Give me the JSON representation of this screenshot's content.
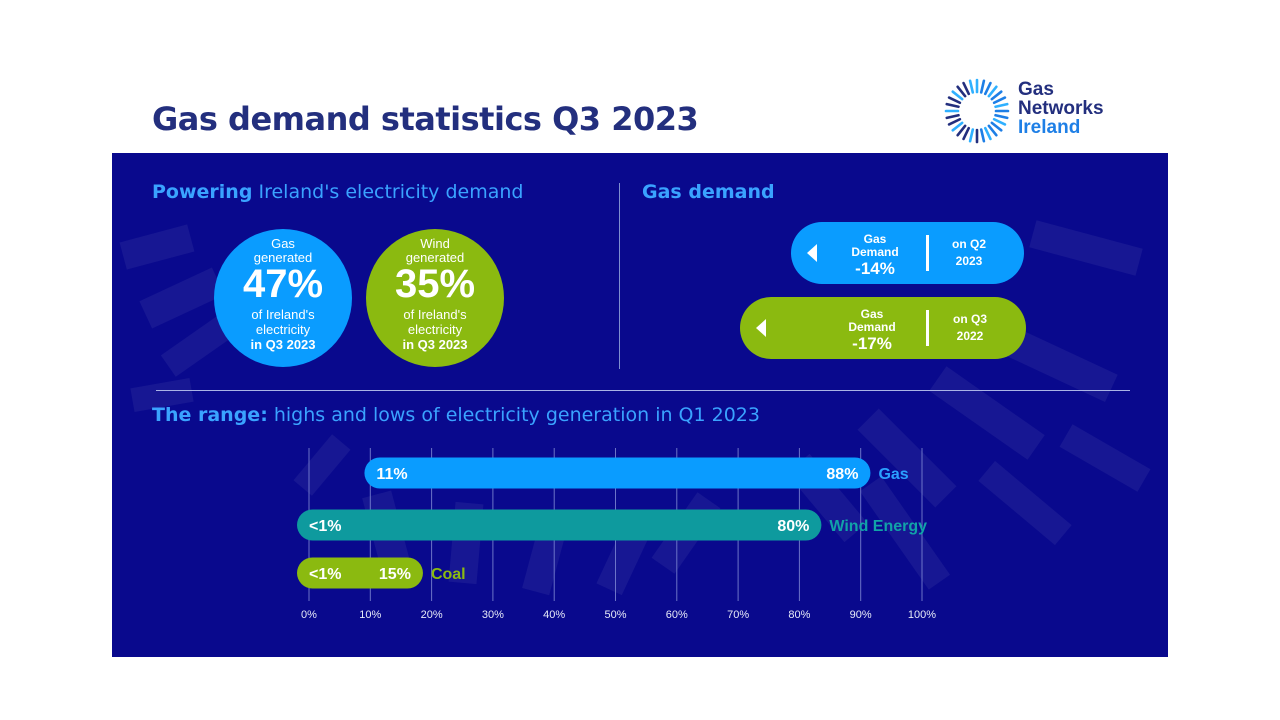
{
  "title": "Gas demand statistics Q3 2023",
  "logo": {
    "line1": "Gas",
    "line2": "Networks",
    "line3": "Ireland"
  },
  "colors": {
    "navy": "#232f7e",
    "panel": "#09098d",
    "gas_blue": "#0a9cff",
    "wind_green": "#8bba10",
    "teal": "#0e9a9e",
    "heading_blue": "#3aa3ff"
  },
  "powering": {
    "heading_bold": "Powering",
    "heading_rest": " Ireland's electricity demand",
    "gas": {
      "top1": "Gas",
      "top2": "generated",
      "value": "47%",
      "bot1": "of Ireland's",
      "bot2": "electricity",
      "bot3": "in Q3 2023"
    },
    "wind": {
      "top1": "Wind",
      "top2": "generated",
      "value": "35%",
      "bot1": "of Ireland's",
      "bot2": "electricity",
      "bot3": "in Q3 2023"
    }
  },
  "gas_demand": {
    "heading": "Gas demand",
    "items": [
      {
        "line1": "Gas",
        "line2": "Demand",
        "value": "-14%",
        "ref1": "on Q2",
        "ref2": "2023"
      },
      {
        "line1": "Gas",
        "line2": "Demand",
        "value": "-17%",
        "ref1": "on Q3",
        "ref2": "2022"
      }
    ]
  },
  "range": {
    "heading_bold": "The range:",
    "heading_rest": " highs and lows of electricity generation in Q1 2023"
  },
  "chart_data": {
    "type": "bar",
    "orientation": "horizontal-range",
    "title": "The range: highs and lows of electricity generation in Q1 2023",
    "x_ticks": [
      "0%",
      "10%",
      "20%",
      "30%",
      "40%",
      "50%",
      "60%",
      "70%",
      "80%",
      "90%",
      "100%"
    ],
    "xlim": [
      0,
      100
    ],
    "grid": true,
    "series": [
      {
        "name": "Gas",
        "low": 11,
        "high": 88,
        "low_label": "11%",
        "high_label": "88%",
        "color": "#0a9cff",
        "label_color": "#2aa0ff"
      },
      {
        "name": "Wind Energy",
        "low": 0,
        "high": 80,
        "low_label": "<1%",
        "high_label": "80%",
        "color": "#0e9a9e",
        "label_color": "#11a3a8"
      },
      {
        "name": "Coal",
        "low": 0,
        "high": 15,
        "low_label": "<1%",
        "high_label": "15%",
        "color": "#8bba10",
        "label_color": "#8bba10"
      }
    ]
  }
}
